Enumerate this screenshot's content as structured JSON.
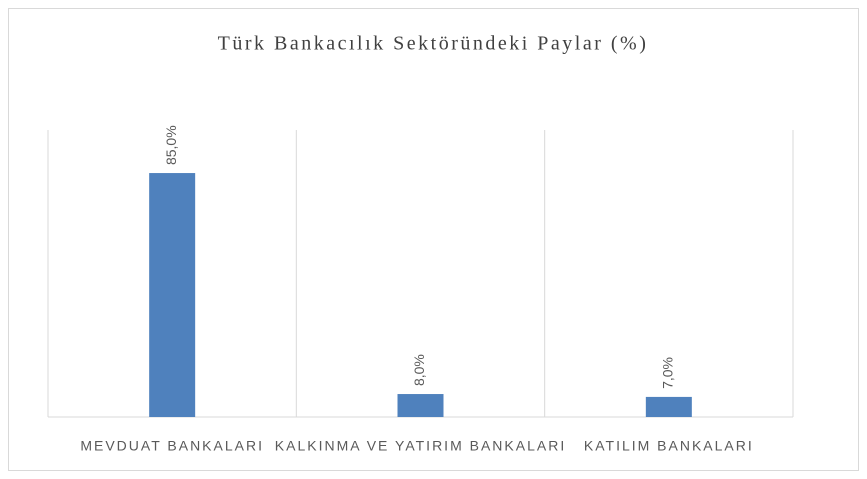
{
  "chart_data": {
    "type": "bar",
    "title": "Türk Bankacılık Sektöründeki Paylar (%)",
    "categories": [
      "MEVDUAT BANKALARI",
      "KALKINMA VE YATIRIM BANKALARI",
      "KATILIM BANKALARI"
    ],
    "values": [
      85,
      8,
      7
    ],
    "value_labels": [
      "85,0%",
      "8,0%",
      "7,0%"
    ],
    "color": "#4f81bd",
    "ylim": [
      0,
      100
    ]
  }
}
